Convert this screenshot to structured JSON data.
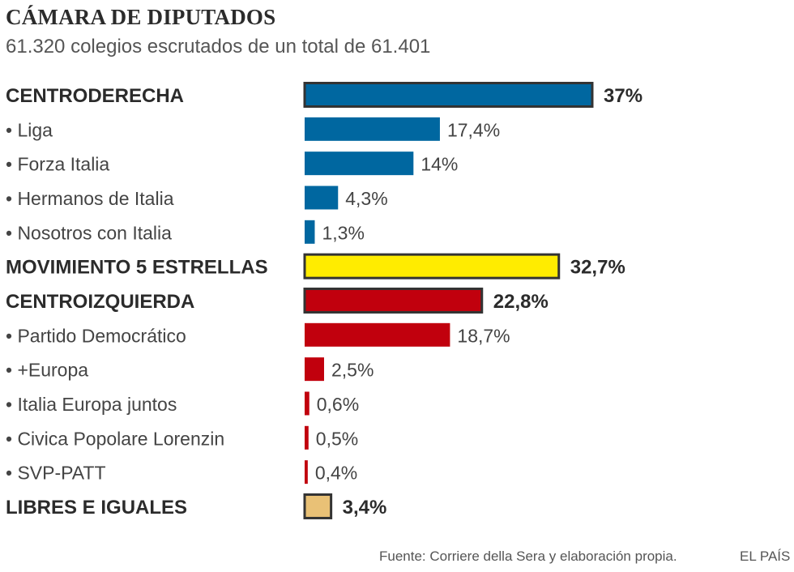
{
  "header": {
    "title": "CÁMARA DE DIPUTADOS",
    "subtitle": "61.320 colegios escrutados de un total de 61.401"
  },
  "footer": {
    "source": "Fuente: Corriere della Sera y elaboración propia.",
    "brand": "EL PAÍS"
  },
  "colors": {
    "centroderecha": "#0067a0",
    "m5s": "#ffec00",
    "centroizquierda": "#c1000d",
    "leu": "#e9c176",
    "outline": "#333333"
  },
  "chart_data": {
    "type": "bar",
    "orientation": "horizontal",
    "unit": "%",
    "xlim": [
      0,
      37
    ],
    "grid": false,
    "legend": "none",
    "rows": [
      {
        "label": "CENTRODERECHA",
        "value": 37,
        "value_label": "37%",
        "group": "centroderecha",
        "level": "coalition"
      },
      {
        "label": "• Liga",
        "value": 17.4,
        "value_label": "17,4%",
        "group": "centroderecha",
        "level": "party"
      },
      {
        "label": "• Forza Italia",
        "value": 14,
        "value_label": "14%",
        "group": "centroderecha",
        "level": "party"
      },
      {
        "label": "• Hermanos  de Italia",
        "value": 4.3,
        "value_label": "4,3%",
        "group": "centroderecha",
        "level": "party"
      },
      {
        "label": "• Nosotros con Italia",
        "value": 1.3,
        "value_label": "1,3%",
        "group": "centroderecha",
        "level": "party"
      },
      {
        "label": "MOVIMIENTO 5 ESTRELLAS",
        "value": 32.7,
        "value_label": "32,7%",
        "group": "m5s",
        "level": "coalition"
      },
      {
        "label": "CENTROIZQUIERDA",
        "value": 22.8,
        "value_label": "22,8%",
        "group": "centroizquierda",
        "level": "coalition"
      },
      {
        "label": "• Partido Democrático",
        "value": 18.7,
        "value_label": "18,7%",
        "group": "centroizquierda",
        "level": "party"
      },
      {
        "label": "• +Europa",
        "value": 2.5,
        "value_label": "2,5%",
        "group": "centroizquierda",
        "level": "party"
      },
      {
        "label": "• Italia Europa juntos",
        "value": 0.6,
        "value_label": "0,6%",
        "group": "centroizquierda",
        "level": "party"
      },
      {
        "label": "• Civica Popolare Lorenzin",
        "value": 0.5,
        "value_label": "0,5%",
        "group": "centroizquierda",
        "level": "party"
      },
      {
        "label": "• SVP-PATT",
        "value": 0.4,
        "value_label": "0,4%",
        "group": "centroizquierda",
        "level": "party"
      },
      {
        "label": "LIBRES E IGUALES",
        "value": 3.4,
        "value_label": "3,4%",
        "group": "leu",
        "level": "coalition"
      }
    ]
  }
}
